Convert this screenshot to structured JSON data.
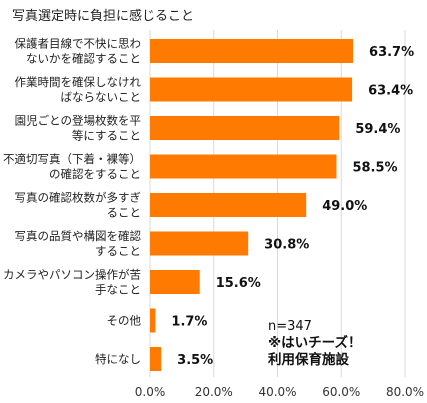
{
  "chart_data": {
    "type": "bar",
    "orientation": "horizontal",
    "title": "写真選定時に負担に感じること",
    "categories": [
      [
        "保護者目線で不快に思わ",
        "ないかを確認すること"
      ],
      [
        "作業時間を確保しなけれ",
        "ばならないこと"
      ],
      [
        "園児ごとの登場枚数を平",
        "等にすること"
      ],
      [
        "不適切写真（下着・裸等）",
        "の確認をすること"
      ],
      [
        "写真の確認枚数が多すぎ",
        "ること"
      ],
      [
        "写真の品質や構図を確認",
        "すること"
      ],
      [
        "カメラやパソコン操作が苦",
        "手なこと"
      ],
      [
        "その他"
      ],
      [
        "特になし"
      ]
    ],
    "values": [
      63.7,
      63.4,
      59.4,
      58.5,
      49.0,
      30.8,
      15.6,
      1.7,
      3.5
    ],
    "value_labels": [
      "63.7%",
      "63.4%",
      "59.4%",
      "58.5%",
      "49.0%",
      "30.8%",
      "15.6%",
      "1.7%",
      "3.5%"
    ],
    "xlim": [
      0,
      80
    ],
    "x_ticks": [
      0,
      20,
      40,
      60,
      80
    ],
    "x_tick_labels": [
      "0.0%",
      "20.0%",
      "40.0%",
      "60.0%",
      "80.0%"
    ],
    "grid": true,
    "bar_color": "#ff7a00",
    "grid_color": "#d9d9d9"
  },
  "note": {
    "n": "n=347",
    "brand": "※はいチーズ！",
    "facility": "利用保育施設"
  }
}
